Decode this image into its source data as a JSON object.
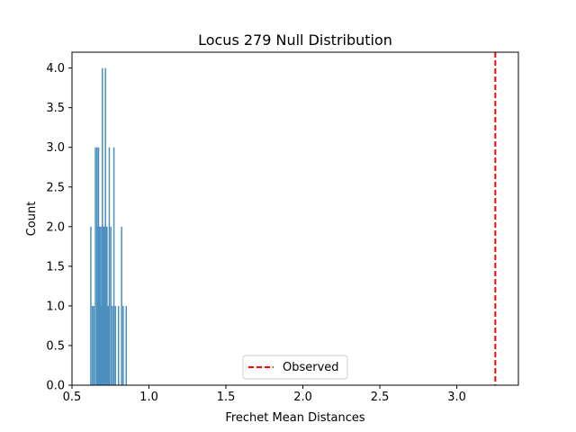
{
  "chart_data": {
    "type": "bar",
    "title": "Locus 279 Null Distribution",
    "xlabel": "Frechet Mean Distances",
    "ylabel": "Count",
    "xlim": [
      0.5,
      3.4
    ],
    "ylim": [
      0,
      4.2
    ],
    "xticks": [
      "0.5",
      "1.0",
      "1.5",
      "2.0",
      "2.5",
      "3.0"
    ],
    "yticks": [
      "0.0",
      "0.5",
      "1.0",
      "1.5",
      "2.0",
      "2.5",
      "3.0",
      "3.5",
      "4.0"
    ],
    "grid": false,
    "bar_color": "#4c8fc0",
    "bin_width": 0.004,
    "bars": [
      {
        "x": 0.62,
        "count": 2
      },
      {
        "x": 0.63,
        "count": 1
      },
      {
        "x": 0.64,
        "count": 1
      },
      {
        "x": 0.65,
        "count": 3
      },
      {
        "x": 0.66,
        "count": 3
      },
      {
        "x": 0.665,
        "count": 2
      },
      {
        "x": 0.67,
        "count": 3
      },
      {
        "x": 0.675,
        "count": 2
      },
      {
        "x": 0.68,
        "count": 2
      },
      {
        "x": 0.685,
        "count": 1
      },
      {
        "x": 0.69,
        "count": 2
      },
      {
        "x": 0.695,
        "count": 4
      },
      {
        "x": 0.7,
        "count": 2
      },
      {
        "x": 0.705,
        "count": 2
      },
      {
        "x": 0.71,
        "count": 2
      },
      {
        "x": 0.715,
        "count": 4
      },
      {
        "x": 0.72,
        "count": 2
      },
      {
        "x": 0.725,
        "count": 2
      },
      {
        "x": 0.73,
        "count": 1
      },
      {
        "x": 0.735,
        "count": 1
      },
      {
        "x": 0.74,
        "count": 3
      },
      {
        "x": 0.75,
        "count": 2
      },
      {
        "x": 0.76,
        "count": 1
      },
      {
        "x": 0.77,
        "count": 3
      },
      {
        "x": 0.78,
        "count": 1
      },
      {
        "x": 0.8,
        "count": 1
      },
      {
        "x": 0.82,
        "count": 2
      },
      {
        "x": 0.83,
        "count": 1
      },
      {
        "x": 0.85,
        "count": 1
      }
    ],
    "observed_line": {
      "x": 3.25,
      "label": "Observed",
      "color": "#ff0000",
      "style": "dashed"
    },
    "legend": {
      "placement": "bottom-center",
      "entries": [
        "Observed"
      ]
    }
  }
}
